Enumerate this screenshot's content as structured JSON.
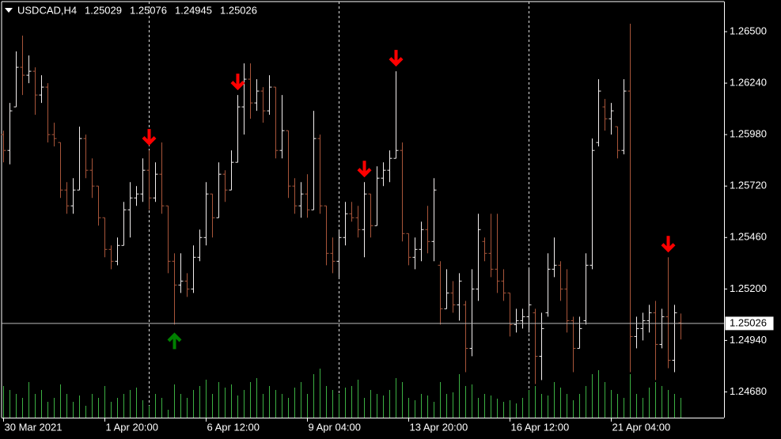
{
  "chart_data": {
    "type": "ohlc",
    "symbol": "USDCAD,H4",
    "categories": [
      "30 Mar 2021",
      null,
      null,
      null,
      null,
      null,
      null,
      null,
      null,
      null,
      null,
      null,
      null,
      null,
      null,
      null,
      "1 Apr 20:00",
      null,
      null,
      null,
      null,
      null,
      null,
      null,
      null,
      null,
      null,
      null,
      null,
      null,
      null,
      null,
      "6 Apr 12:00",
      null,
      null,
      null,
      null,
      null,
      null,
      null,
      null,
      null,
      null,
      null,
      null,
      null,
      null,
      null,
      "9 Apr 04:00",
      null,
      null,
      null,
      null,
      null,
      null,
      null,
      null,
      null,
      null,
      null,
      null,
      null,
      null,
      null,
      "13 Apr 20:00",
      null,
      null,
      null,
      null,
      null,
      null,
      null,
      null,
      null,
      null,
      null,
      null,
      null,
      null,
      null,
      "16 Apr 12:00",
      null,
      null,
      null,
      null,
      null,
      null,
      null,
      null,
      null,
      null,
      null,
      null,
      null,
      null,
      null,
      "21 Apr 04:00",
      null,
      null,
      null,
      null,
      null,
      null,
      null,
      null,
      null,
      null,
      null
    ],
    "open": [
      1.2598,
      1.259,
      1.2612,
      1.2632,
      1.2628,
      1.263,
      1.2618,
      1.2622,
      1.2598,
      1.2594,
      1.257,
      1.2562,
      1.257,
      1.2596,
      1.258,
      1.2572,
      1.2556,
      1.254,
      1.2534,
      1.2542,
      1.256,
      1.2566,
      1.2568,
      1.258,
      1.2566,
      1.2578,
      1.2562,
      1.2534,
      1.2522,
      1.2524,
      1.252,
      1.2536,
      1.2546,
      1.2568,
      1.2556,
      1.2578,
      1.257,
      1.2584,
      1.2612,
      1.2626,
      1.2614,
      1.262,
      1.261,
      1.2622,
      1.259,
      1.26,
      1.2572,
      1.2562,
      1.2568,
      1.256,
      1.2596,
      1.2562,
      1.2538,
      1.2534,
      1.2546,
      1.2558,
      1.2556,
      1.255,
      1.2568,
      1.2552,
      1.2576,
      1.258,
      1.2586,
      1.259,
      1.2548,
      1.2536,
      1.254,
      1.255,
      1.2544,
      1.2532,
      1.251,
      1.2518,
      1.2512,
      1.2512,
      1.249,
      1.252,
      1.2544,
      1.2538,
      1.253,
      1.2524,
      1.2518,
      1.2502,
      1.2504,
      1.2506,
      1.2508,
      1.2486,
      1.2508,
      1.253,
      1.2532,
      1.252,
      1.2504,
      1.249,
      1.2504,
      1.2532,
      1.2594,
      1.2612,
      1.2606,
      1.2602,
      1.259,
      1.262,
      1.2496,
      1.25,
      1.2504,
      1.2508,
      1.2492,
      1.2506,
      1.2484,
      1.25029
    ],
    "high": [
      1.26,
      1.2614,
      1.264,
      1.2648,
      1.2638,
      1.2632,
      1.2628,
      1.2624,
      1.2604,
      1.2594,
      1.2574,
      1.2576,
      1.2602,
      1.2598,
      1.2586,
      1.2572,
      1.2556,
      1.2542,
      1.2546,
      1.2564,
      1.2574,
      1.2572,
      1.2586,
      1.259,
      1.2584,
      1.2594,
      1.2562,
      1.2538,
      1.2538,
      1.2528,
      1.2542,
      1.255,
      1.2574,
      1.2568,
      1.2584,
      1.258,
      1.259,
      1.2618,
      1.2634,
      1.2634,
      1.2626,
      1.2622,
      1.2628,
      1.2622,
      1.2618,
      1.26,
      1.2576,
      1.2574,
      1.2578,
      1.261,
      1.2598,
      1.2562,
      1.2546,
      1.255,
      1.2564,
      1.2564,
      1.2562,
      1.2574,
      1.2568,
      1.2582,
      1.2584,
      1.259,
      1.263,
      1.2594,
      1.2548,
      1.2546,
      1.2554,
      1.2562,
      1.2576,
      1.2534,
      1.253,
      1.2524,
      1.2528,
      1.2514,
      1.253,
      1.2558,
      1.2546,
      1.2558,
      1.2558,
      1.253,
      1.2518,
      1.251,
      1.251,
      1.253,
      1.251,
      1.2508,
      1.2538,
      1.2546,
      1.2534,
      1.253,
      1.2506,
      1.2506,
      1.2538,
      1.2596,
      1.2626,
      1.2616,
      1.2614,
      1.2602,
      1.2626,
      1.2654,
      1.2506,
      1.2508,
      1.2512,
      1.2514,
      1.251,
      1.2536,
      1.2512,
      1.25076
    ],
    "low": [
      1.2584,
      1.2583,
      1.2612,
      1.2618,
      1.2624,
      1.2608,
      1.2614,
      1.2594,
      1.2592,
      1.2566,
      1.2558,
      1.2558,
      1.257,
      1.2576,
      1.2566,
      1.2552,
      1.2536,
      1.253,
      1.2532,
      1.2542,
      1.2546,
      1.2562,
      1.2564,
      1.256,
      1.2564,
      1.2558,
      1.2528,
      1.2502,
      1.2518,
      1.2516,
      1.2518,
      1.2534,
      1.2542,
      1.2546,
      1.2556,
      1.2564,
      1.257,
      1.2584,
      1.2598,
      1.2606,
      1.261,
      1.2604,
      1.2608,
      1.2586,
      1.2586,
      1.2566,
      1.2558,
      1.2556,
      1.2556,
      1.256,
      1.2558,
      1.2532,
      1.2528,
      1.2526,
      1.2542,
      1.2554,
      1.2546,
      1.2536,
      1.2546,
      1.2552,
      1.2572,
      1.2574,
      1.2586,
      1.2544,
      1.2532,
      1.253,
      1.2534,
      1.2538,
      1.2534,
      1.2502,
      1.251,
      1.2508,
      1.2504,
      1.2478,
      1.2486,
      1.2514,
      1.2534,
      1.2526,
      1.2518,
      1.2514,
      1.2496,
      1.2498,
      1.25,
      1.2498,
      1.2472,
      1.2474,
      1.2506,
      1.2526,
      1.2514,
      1.2498,
      1.2478,
      1.249,
      1.2502,
      1.253,
      1.2592,
      1.26,
      1.2598,
      1.2586,
      1.2588,
      1.2478,
      1.249,
      1.2494,
      1.2498,
      1.2474,
      1.249,
      1.248,
      1.2478,
      1.24945
    ],
    "close": [
      1.259,
      1.261,
      1.2632,
      1.2628,
      1.263,
      1.2618,
      1.2622,
      1.2598,
      1.2596,
      1.257,
      1.2562,
      1.257,
      1.2596,
      1.258,
      1.2572,
      1.2556,
      1.254,
      1.2534,
      1.2542,
      1.256,
      1.2566,
      1.2568,
      1.258,
      1.2566,
      1.2578,
      1.2562,
      1.2534,
      1.2522,
      1.2524,
      1.252,
      1.2536,
      1.2546,
      1.2568,
      1.2556,
      1.2578,
      1.257,
      1.2584,
      1.2612,
      1.2626,
      1.2614,
      1.262,
      1.261,
      1.2622,
      1.259,
      1.26,
      1.2572,
      1.2562,
      1.2568,
      1.256,
      1.2596,
      1.2562,
      1.2538,
      1.2534,
      1.2546,
      1.2558,
      1.2556,
      1.255,
      1.2568,
      1.2552,
      1.2576,
      1.258,
      1.2586,
      1.259,
      1.2548,
      1.2536,
      1.254,
      1.255,
      1.2544,
      1.257,
      1.251,
      1.2518,
      1.2512,
      1.2524,
      1.249,
      1.252,
      1.255,
      1.2538,
      1.253,
      1.2524,
      1.2518,
      1.2502,
      1.2504,
      1.2506,
      1.2512,
      1.2486,
      1.25,
      1.253,
      1.2532,
      1.252,
      1.2504,
      1.249,
      1.25,
      1.2532,
      1.259,
      1.262,
      1.2606,
      1.261,
      1.259,
      1.262,
      1.2496,
      1.25,
      1.2504,
      1.2508,
      1.2492,
      1.2506,
      1.2484,
      1.2508,
      1.25026
    ],
    "volume": [
      40,
      35,
      30,
      25,
      45,
      30,
      35,
      20,
      25,
      42,
      30,
      20,
      28,
      15,
      30,
      25,
      40,
      20,
      25,
      30,
      35,
      38,
      22,
      15,
      30,
      25,
      10,
      42,
      30,
      25,
      35,
      40,
      48,
      30,
      45,
      38,
      42,
      28,
      35,
      45,
      50,
      30,
      40,
      35,
      30,
      25,
      38,
      45,
      30,
      55,
      62,
      40,
      35,
      30,
      38,
      40,
      48,
      25,
      35,
      30,
      28,
      35,
      50,
      45,
      25,
      22,
      30,
      28,
      20,
      45,
      30,
      32,
      55,
      40,
      42,
      25,
      30,
      28,
      24,
      20,
      22,
      18,
      25,
      35,
      40,
      30,
      28,
      45,
      38,
      30,
      22,
      30,
      40,
      55,
      60,
      45,
      35,
      30,
      25,
      55,
      30,
      25,
      38,
      45,
      40,
      35,
      30,
      25
    ],
    "vlim": [
      0,
      100
    ],
    "ylim": [
      1.2455,
      1.26652
    ],
    "yticks": [
      {
        "value": 1.265,
        "label": "1.26500"
      },
      {
        "value": 1.2624,
        "label": "1.26240"
      },
      {
        "value": 1.2598,
        "label": "1.25980"
      },
      {
        "value": 1.2572,
        "label": "1.25720"
      },
      {
        "value": 1.2546,
        "label": "1.25460"
      },
      {
        "value": 1.252,
        "label": "1.25200"
      },
      {
        "value": 1.2494,
        "label": "1.24940"
      },
      {
        "value": 1.2468,
        "label": "1.24680"
      }
    ],
    "separators": [
      23,
      53,
      83
    ],
    "signals": [
      {
        "index": 23,
        "direction": "down",
        "color": "#ff0000"
      },
      {
        "index": 27,
        "direction": "up",
        "color": "#008000"
      },
      {
        "index": 37,
        "direction": "down",
        "color": "#ff0000"
      },
      {
        "index": 57,
        "direction": "down",
        "color": "#ff0000"
      },
      {
        "index": 62,
        "direction": "down",
        "color": "#ff0000"
      },
      {
        "index": 105,
        "direction": "down",
        "color": "#ff0000"
      }
    ],
    "up_color": "#f2eeee",
    "down_color": "#a8553a",
    "volume_color": "#3cb043",
    "grid": false
  }
}
